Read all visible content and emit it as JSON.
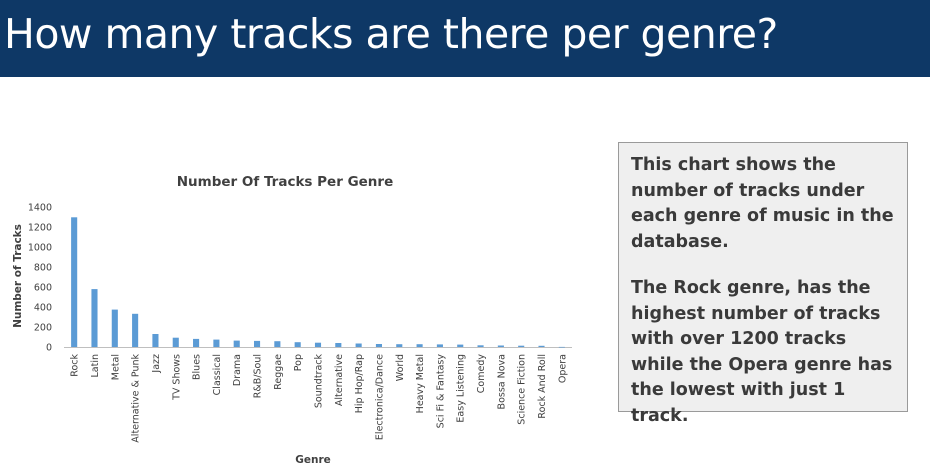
{
  "header": {
    "title": "How many tracks are there per genre?"
  },
  "callout": {
    "paragraph1": "This chart shows the number of tracks under each genre of music in the database.",
    "paragraph2": "The Rock genre, has the highest number of tracks with over 1200 tracks while the Opera genre has the lowest with just 1 track."
  },
  "colors": {
    "header": "#0e3866",
    "bar": "#5b9bd5"
  },
  "chart_data": {
    "type": "bar",
    "title": "Number Of Tracks Per Genre",
    "xlabel": "Genre",
    "ylabel": "Number of Tracks",
    "ylim": [
      0,
      1400
    ],
    "yticks": [
      0,
      200,
      400,
      600,
      800,
      1000,
      1200,
      1400
    ],
    "grid": false,
    "categories": [
      "Rock",
      "Latin",
      "Metal",
      "Alternative & Punk",
      "Jazz",
      "TV Shows",
      "Blues",
      "Classical",
      "Drama",
      "R&B/Soul",
      "Reggae",
      "Pop",
      "Soundtrack",
      "Alternative",
      "Hip Hop/Rap",
      "Electronica/Dance",
      "World",
      "Heavy Metal",
      "Sci Fi & Fantasy",
      "Easy Listening",
      "Comedy",
      "Bossa Nova",
      "Science Fiction",
      "Rock And Roll",
      "Opera"
    ],
    "values": [
      1297,
      579,
      374,
      332,
      130,
      93,
      81,
      74,
      64,
      61,
      58,
      48,
      43,
      40,
      35,
      30,
      28,
      28,
      26,
      24,
      17,
      15,
      13,
      12,
      1
    ]
  }
}
